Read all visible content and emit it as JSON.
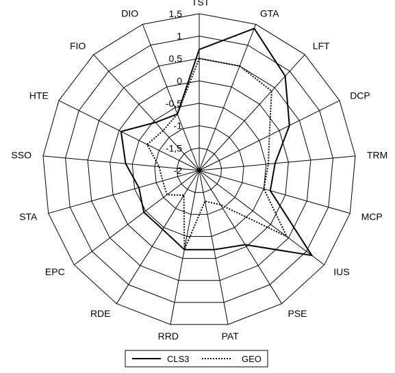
{
  "chart_data": {
    "type": "radar",
    "title": "",
    "axes": [
      "TST",
      "GTA",
      "LFT",
      "DCP",
      "TRM",
      "MCP",
      "IUS",
      "PSE",
      "PAT",
      "RRD",
      "RDE",
      "EPC",
      "STA",
      "SSO",
      "HTE",
      "FIO",
      "DIO"
    ],
    "rlim": [
      -2,
      1.5
    ],
    "ticks": [
      -2,
      -1.5,
      -1,
      -0.5,
      0,
      0.5,
      1,
      1.5
    ],
    "tick_labels": [
      "-2",
      "-1,5",
      "-1",
      "-0,5",
      "0",
      "0,5",
      "1",
      "1,5"
    ],
    "grid": true,
    "legend_position": "bottom",
    "series": [
      {
        "name": "CLS3",
        "style": "solid",
        "color": "#000000",
        "values": [
          0.7,
          1.4,
          0.85,
          0.25,
          -0.3,
          -0.35,
          1.15,
          -0.05,
          -0.2,
          -0.2,
          -0.45,
          -0.45,
          -0.6,
          -0.35,
          -0.05,
          -0.55,
          -0.65
        ]
      },
      {
        "name": "GEO",
        "style": "dotted",
        "color": "#000000",
        "values": [
          0.5,
          0.5,
          0.4,
          -0.25,
          -0.45,
          -0.5,
          0.45,
          -1.1,
          -1.3,
          -0.2,
          -1.35,
          -1.1,
          -1.15,
          -1.1,
          -0.7,
          -0.8,
          -0.65
        ]
      }
    ]
  }
}
